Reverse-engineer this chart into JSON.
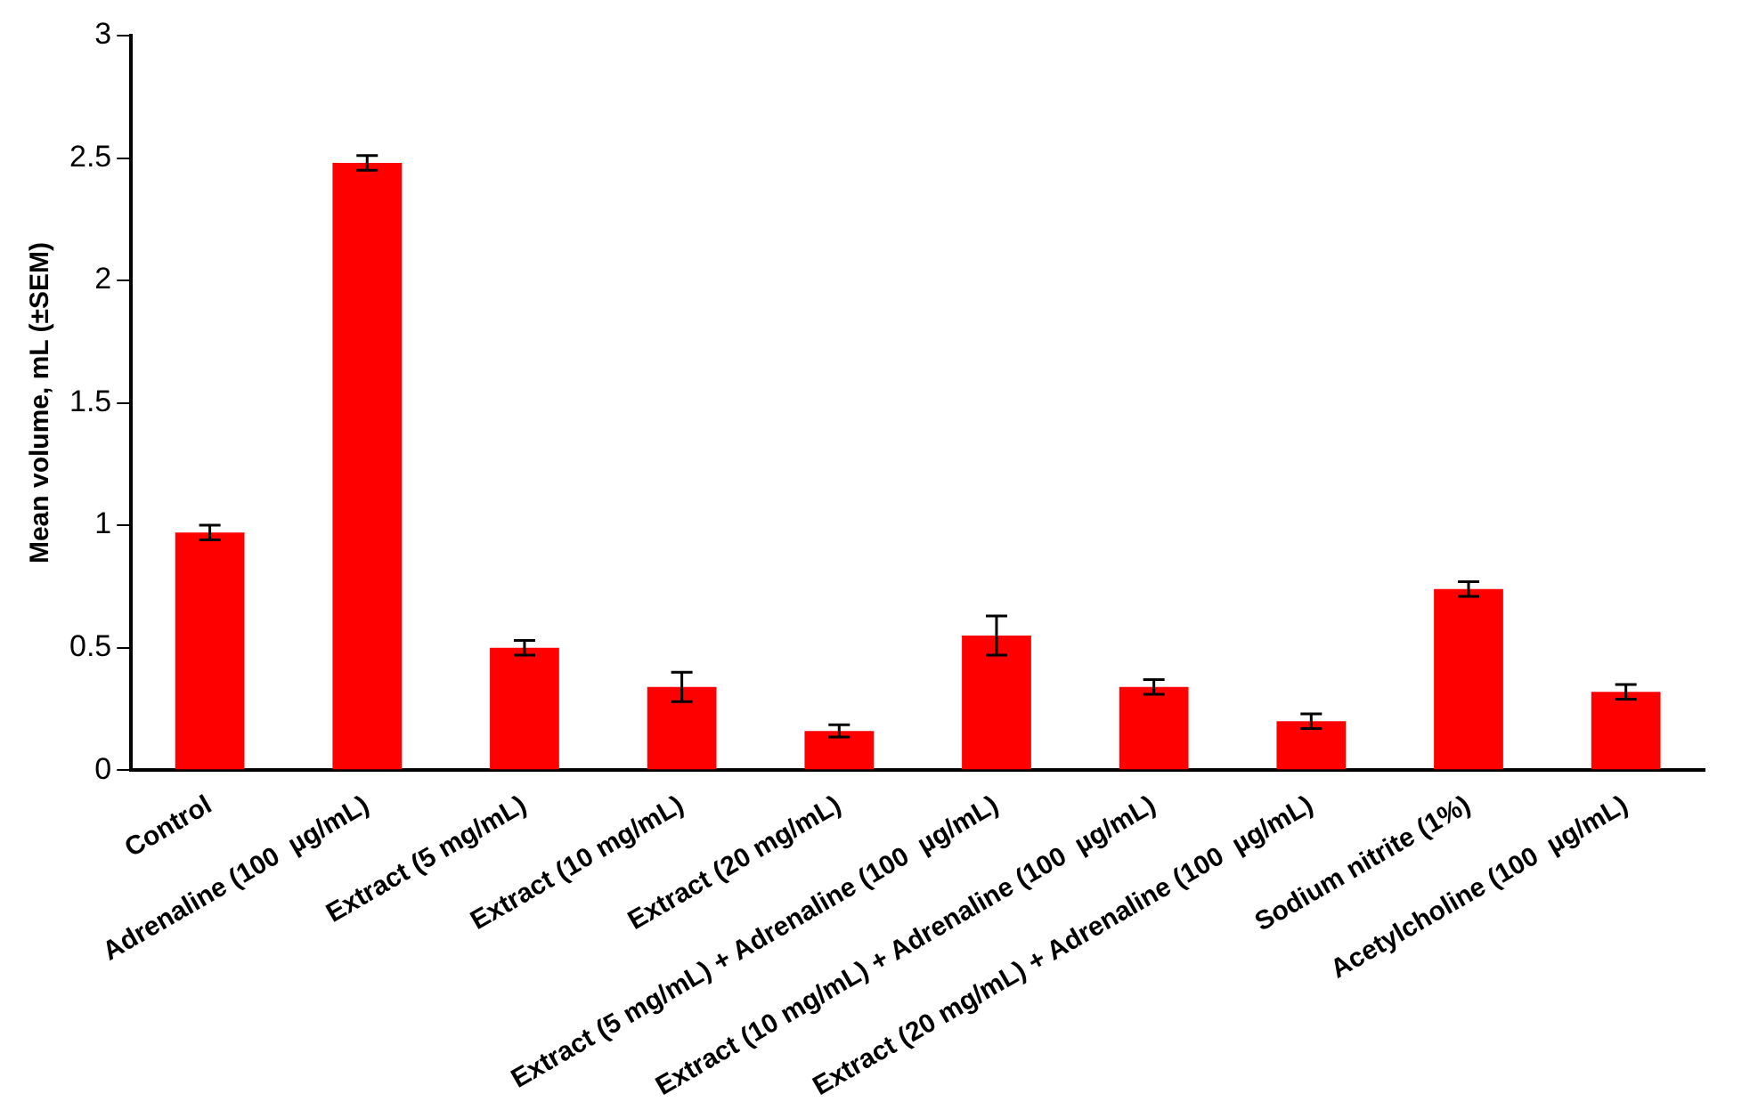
{
  "chart_data": {
    "type": "bar",
    "ylabel": "Mean volume, mL (±SEM)",
    "categories": [
      "Control",
      "Adrenaline (100  µg/mL)",
      "Extract (5 mg/mL)",
      "Extract (10 mg/mL)",
      "Extract (20 mg/mL)",
      "Extract (5 mg/mL) + Adrenaline (100  µg/mL)",
      "Extract (10 mg/mL) + Adrenaline (100  µg/mL)",
      "Extract (20 mg/mL) + Adrenaline (100  µg/mL)",
      "Sodium nitrite (1%)",
      "Acetylcholine (100  µg/mL)"
    ],
    "values": [
      0.97,
      2.48,
      0.5,
      0.34,
      0.16,
      0.55,
      0.34,
      0.2,
      0.74,
      0.32
    ],
    "errors": [
      0.03,
      0.03,
      0.03,
      0.06,
      0.025,
      0.08,
      0.03,
      0.03,
      0.03,
      0.03
    ],
    "color": "#ff0000",
    "ylim": [
      0,
      3
    ],
    "yticks": [
      0,
      0.5,
      1,
      1.5,
      2,
      2.5,
      3
    ],
    "grid": false,
    "legend": false
  }
}
